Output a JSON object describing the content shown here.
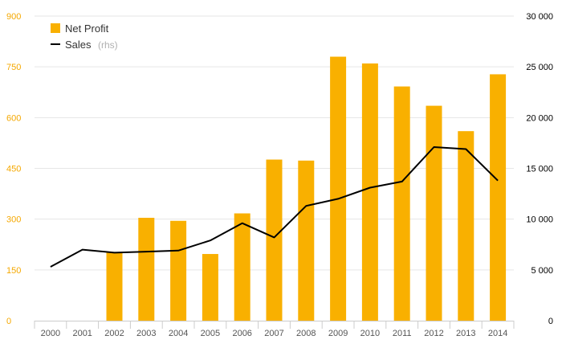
{
  "chart_data": {
    "type": "bar+line",
    "categories": [
      "2000",
      "2001",
      "2002",
      "2003",
      "2004",
      "2005",
      "2006",
      "2007",
      "2008",
      "2009",
      "2010",
      "2011",
      "2012",
      "2013",
      "2014"
    ],
    "series": [
      {
        "name": "Net Profit",
        "type": "bar",
        "axis": "left",
        "color": "#f9b000",
        "values": [
          0,
          0,
          203,
          304,
          295,
          197,
          317,
          476,
          473,
          780,
          760,
          692,
          635,
          560,
          728
        ]
      },
      {
        "name": "Sales",
        "name_suffix": "(rhs)",
        "type": "line",
        "axis": "right",
        "color": "#000000",
        "values": [
          5300,
          7000,
          6700,
          6800,
          6900,
          7900,
          9600,
          8200,
          11300,
          12000,
          13100,
          13700,
          17100,
          16900,
          13800
        ]
      }
    ],
    "y_left": {
      "ylim": [
        0,
        900
      ],
      "ticks": [
        "0",
        "150",
        "300",
        "450",
        "600",
        "750",
        "900"
      ]
    },
    "y_right": {
      "ylim": [
        0,
        30000
      ],
      "ticks": [
        "0",
        "5 000",
        "10 000",
        "15 000",
        "20 000",
        "25 000",
        "30 000"
      ]
    },
    "legend": {
      "position": "top-left"
    },
    "grid": true
  }
}
